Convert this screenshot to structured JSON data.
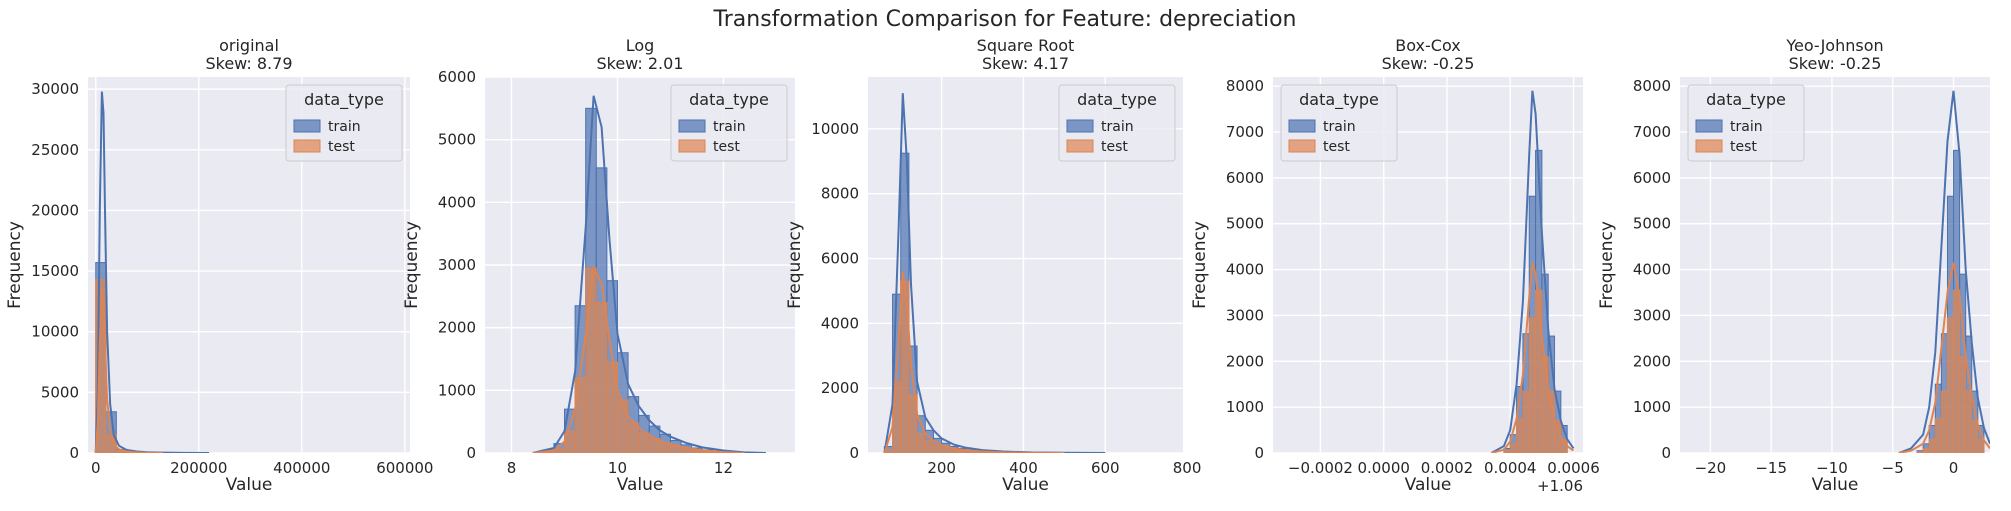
{
  "figure_title": "Transformation Comparison for Feature: depreciation",
  "colors": {
    "train": "#4c72b0",
    "test": "#dd8452",
    "panel_bg": "#eaeaf2",
    "grid": "#ffffff"
  },
  "chart_data": [
    {
      "type": "histogram",
      "title": "original\nSkew: 8.79",
      "xlabel": "Value",
      "ylabel": "Frequency",
      "xlim": [
        -15000,
        610000
      ],
      "ylim": [
        0,
        31000
      ],
      "xticks": [
        0,
        200000,
        400000,
        600000
      ],
      "xtick_labels": [
        "0",
        "200000",
        "400000",
        "600000"
      ],
      "yticks": [
        0,
        5000,
        10000,
        15000,
        20000,
        25000,
        30000
      ],
      "ytick_labels": [
        "0",
        "5000",
        "10000",
        "15000",
        "20000",
        "25000",
        "30000"
      ],
      "offset_label": "",
      "legend": {
        "title": "data_type",
        "position": "top-right",
        "entries": [
          "train",
          "test"
        ]
      },
      "bin_edges": [
        0,
        20000,
        40000,
        60000,
        80000,
        100000,
        120000
      ],
      "series": [
        {
          "name": "train",
          "counts": [
            15700,
            3400,
            300,
            120,
            60,
            30
          ],
          "kde_x": [
            0,
            4000,
            8000,
            12000,
            15000,
            18000,
            22000,
            28000,
            35000,
            45000,
            60000,
            80000,
            100000,
            130000,
            170000,
            220000
          ],
          "kde_y": [
            0,
            5000,
            20000,
            29800,
            28000,
            20000,
            10000,
            4000,
            1500,
            600,
            250,
            120,
            60,
            30,
            10,
            0
          ]
        },
        {
          "name": "test",
          "counts": [
            14300,
            1500,
            150,
            60,
            30,
            15
          ],
          "kde_x": [
            0,
            4000,
            8000,
            12000,
            15000,
            18000,
            22000,
            28000,
            35000,
            45000,
            60000,
            80000,
            100000,
            130000
          ],
          "kde_y": [
            0,
            2500,
            9000,
            13500,
            12500,
            9000,
            4500,
            1800,
            700,
            300,
            120,
            50,
            20,
            0
          ]
        }
      ]
    },
    {
      "type": "histogram",
      "title": "Log\nSkew: 2.01",
      "xlabel": "Value",
      "ylabel": "Frequency",
      "xlim": [
        7.5,
        13.35
      ],
      "ylim": [
        0,
        6000
      ],
      "xticks": [
        8,
        10,
        12
      ],
      "xtick_labels": [
        "8",
        "10",
        "12"
      ],
      "yticks": [
        0,
        1000,
        2000,
        3000,
        4000,
        5000,
        6000
      ],
      "ytick_labels": [
        "0",
        "1000",
        "2000",
        "3000",
        "4000",
        "5000",
        "6000"
      ],
      "offset_label": "",
      "legend": {
        "title": "data_type",
        "position": "top-right",
        "entries": [
          "train",
          "test"
        ]
      },
      "bin_edges": [
        8.6,
        8.8,
        9.0,
        9.2,
        9.4,
        9.6,
        9.8,
        10.0,
        10.2,
        10.4,
        10.6,
        10.8,
        11.0,
        11.2,
        11.4,
        11.6,
        11.8,
        12.0,
        12.2,
        12.4
      ],
      "series": [
        {
          "name": "train",
          "counts": [
            50,
            150,
            700,
            2350,
            5500,
            4550,
            2750,
            1600,
            900,
            600,
            430,
            300,
            200,
            130,
            80,
            50,
            30,
            15,
            5
          ],
          "kde_x": [
            8.4,
            8.8,
            9.0,
            9.2,
            9.4,
            9.55,
            9.7,
            9.85,
            10.0,
            10.2,
            10.4,
            10.6,
            10.8,
            11.0,
            11.3,
            11.6,
            12.0,
            12.4,
            12.8
          ],
          "kde_y": [
            0,
            80,
            350,
            1300,
            3600,
            5700,
            5200,
            3400,
            1900,
            1100,
            750,
            520,
            360,
            260,
            160,
            90,
            40,
            10,
            0
          ]
        },
        {
          "name": "test",
          "counts": [
            20,
            70,
            350,
            1200,
            2950,
            2400,
            1450,
            850,
            480,
            320,
            230,
            160,
            105,
            70,
            40,
            25,
            15,
            8,
            3
          ],
          "kde_x": [
            8.4,
            8.8,
            9.0,
            9.2,
            9.4,
            9.55,
            9.7,
            9.85,
            10.0,
            10.2,
            10.4,
            10.6,
            10.8,
            11.0,
            11.3,
            11.6,
            12.0,
            12.4
          ],
          "kde_y": [
            0,
            40,
            180,
            700,
            1900,
            2950,
            2700,
            1800,
            1000,
            580,
            400,
            280,
            190,
            140,
            85,
            45,
            15,
            0
          ]
        }
      ]
    },
    {
      "type": "histogram",
      "title": "Square Root\nSkew: 4.17",
      "xlabel": "Value",
      "ylabel": "Frequency",
      "xlim": [
        20,
        790
      ],
      "ylim": [
        0,
        11600
      ],
      "xticks": [
        200,
        400,
        600,
        800
      ],
      "xtick_labels": [
        "200",
        "400",
        "600",
        "800"
      ],
      "yticks": [
        0,
        2000,
        4000,
        6000,
        8000,
        10000
      ],
      "ytick_labels": [
        "0",
        "2000",
        "4000",
        "6000",
        "8000",
        "10000"
      ],
      "offset_label": "",
      "legend": {
        "title": "data_type",
        "position": "top-right",
        "entries": [
          "train",
          "test"
        ]
      },
      "bin_edges": [
        60,
        80,
        100,
        120,
        140,
        160,
        180,
        200,
        220,
        240,
        260,
        280,
        300,
        320,
        340,
        360,
        380,
        400
      ],
      "series": [
        {
          "name": "train",
          "counts": [
            200,
            4900,
            9250,
            3300,
            1150,
            700,
            450,
            300,
            200,
            140,
            100,
            70,
            50,
            35,
            25,
            15,
            10
          ],
          "kde_x": [
            60,
            80,
            95,
            105,
            115,
            125,
            140,
            160,
            180,
            200,
            230,
            260,
            300,
            350,
            420,
            500,
            600
          ],
          "kde_y": [
            0,
            1500,
            7000,
            11100,
            9000,
            5200,
            2200,
            1100,
            700,
            450,
            260,
            160,
            90,
            45,
            20,
            8,
            0
          ]
        },
        {
          "name": "test",
          "counts": [
            100,
            2200,
            5300,
            1800,
            600,
            380,
            250,
            160,
            110,
            75,
            55,
            40,
            28,
            20,
            13,
            8,
            5
          ],
          "kde_x": [
            60,
            80,
            95,
            105,
            115,
            125,
            140,
            160,
            180,
            200,
            230,
            260,
            300,
            350,
            420,
            500
          ],
          "kde_y": [
            0,
            800,
            3500,
            5600,
            4600,
            2700,
            1200,
            600,
            380,
            250,
            140,
            85,
            45,
            20,
            8,
            0
          ]
        }
      ]
    },
    {
      "type": "histogram",
      "title": "Box-Cox\nSkew: -0.25",
      "xlabel": "Value",
      "ylabel": "Frequency",
      "xlim": [
        -0.00035,
        0.00063
      ],
      "ylim": [
        0,
        8200
      ],
      "xticks": [
        -0.0002,
        0.0,
        0.0002,
        0.0004,
        0.0006
      ],
      "xtick_labels": [
        "−0.0002",
        "0.0000",
        "0.0002",
        "0.0004",
        "0.0006"
      ],
      "yticks": [
        0,
        1000,
        2000,
        3000,
        4000,
        5000,
        6000,
        7000,
        8000
      ],
      "ytick_labels": [
        "0",
        "1000",
        "2000",
        "3000",
        "4000",
        "5000",
        "6000",
        "7000",
        "8000"
      ],
      "offset_label": "+1.06",
      "legend": {
        "title": "data_type",
        "position": "top-left",
        "entries": [
          "train",
          "test"
        ]
      },
      "bin_edges": [
        0.00038,
        0.0004,
        0.00042,
        0.00044,
        0.00046,
        0.00048,
        0.0005,
        0.00052,
        0.00054,
        0.00056,
        0.00058,
        0.0006
      ],
      "series": [
        {
          "name": "train",
          "counts": [
            100,
            400,
            1450,
            2600,
            5600,
            6600,
            3900,
            2550,
            1350,
            600,
            0
          ],
          "kde_x": [
            0.00034,
            0.00038,
            0.0004,
            0.00042,
            0.00044,
            0.00046,
            0.00047,
            0.00048,
            0.0005,
            0.00052,
            0.00054,
            0.00056,
            0.00058,
            0.0006
          ],
          "kde_y": [
            0,
            150,
            500,
            1500,
            3300,
            6500,
            7900,
            7400,
            4800,
            2700,
            1400,
            700,
            300,
            100
          ]
        },
        {
          "name": "test",
          "counts": [
            50,
            200,
            750,
            1350,
            2950,
            3550,
            2100,
            1350,
            700,
            300,
            0
          ],
          "kde_x": [
            0.00034,
            0.00038,
            0.0004,
            0.00042,
            0.00044,
            0.00046,
            0.00047,
            0.00048,
            0.0005,
            0.00052,
            0.00054,
            0.00056,
            0.00058,
            0.0006
          ],
          "kde_y": [
            0,
            70,
            250,
            750,
            1700,
            3400,
            4150,
            3900,
            2500,
            1400,
            720,
            350,
            150,
            50
          ]
        }
      ]
    },
    {
      "type": "histogram",
      "title": "Yeo-Johnson\nSkew: -0.25",
      "xlabel": "Value",
      "ylabel": "Frequency",
      "xlim": [
        -22.5,
        3.0
      ],
      "ylim": [
        0,
        8200
      ],
      "xticks": [
        -20,
        -15,
        -10,
        -5,
        0
      ],
      "xtick_labels": [
        "−20",
        "−15",
        "−10",
        "−5",
        "0"
      ],
      "yticks": [
        0,
        1000,
        2000,
        3000,
        4000,
        5000,
        6000,
        7000,
        8000
      ],
      "ytick_labels": [
        "0",
        "1000",
        "2000",
        "3000",
        "4000",
        "5000",
        "6000",
        "7000",
        "8000"
      ],
      "offset_label": "",
      "legend": {
        "title": "data_type",
        "position": "top-left",
        "entries": [
          "train",
          "test"
        ]
      },
      "bin_edges": [
        -3.0,
        -2.5,
        -2.0,
        -1.5,
        -1.0,
        -0.5,
        0.0,
        0.5,
        1.0,
        1.5,
        2.0,
        2.5,
        3.0
      ],
      "series": [
        {
          "name": "train",
          "counts": [
            50,
            200,
            600,
            1500,
            2600,
            5600,
            6600,
            3900,
            2550,
            1350,
            600,
            0
          ],
          "kde_x": [
            -4.5,
            -3.5,
            -2.5,
            -2.0,
            -1.5,
            -1.0,
            -0.5,
            0.0,
            0.5,
            1.0,
            1.5,
            2.0,
            2.5,
            3.0
          ],
          "kde_y": [
            0,
            100,
            400,
            1000,
            2200,
            4500,
            6800,
            7900,
            6500,
            4000,
            2400,
            1200,
            550,
            200
          ]
        },
        {
          "name": "test",
          "counts": [
            25,
            100,
            300,
            750,
            1350,
            2950,
            3550,
            2100,
            1350,
            700,
            300,
            0
          ],
          "kde_x": [
            -4.5,
            -3.5,
            -2.5,
            -2.0,
            -1.5,
            -1.0,
            -0.5,
            0.0,
            0.5,
            1.0,
            1.5,
            2.0,
            2.5,
            3.0
          ],
          "kde_y": [
            0,
            50,
            200,
            500,
            1100,
            2300,
            3500,
            4150,
            3400,
            2100,
            1250,
            620,
            280,
            100
          ]
        }
      ]
    }
  ]
}
